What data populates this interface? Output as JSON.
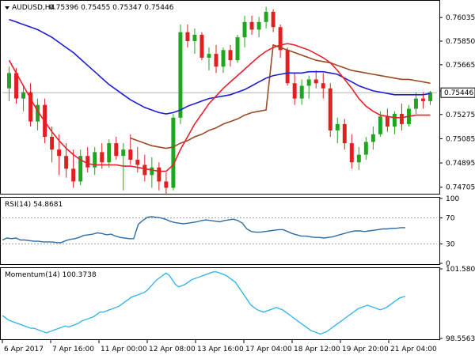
{
  "chart_data": [
    {
      "type": "candlestick",
      "header": {
        "symbol": "AUDUSD,H4",
        "ohlc": "0.75396 0.75455 0.75347 0.75446"
      },
      "current_price": 0.75446,
      "current_price_label": "0.75446",
      "ylim": [
        0.7466,
        0.7616
      ],
      "y_ticks": [
        "0.76035",
        "0.75850",
        "0.75665",
        "0.75460",
        "0.75275",
        "0.75085",
        "0.74895",
        "0.74705"
      ],
      "y_tick_values": [
        0.76035,
        0.7585,
        0.75665,
        0.7546,
        0.75275,
        0.75085,
        0.74895,
        0.74705
      ],
      "grid": false,
      "colors": {
        "bull": "#1fa61f",
        "bear": "#e02020",
        "sma_fast": "#e8202a",
        "sma_mid": "#1c1cd6",
        "sma_slow": "#9a4a24",
        "price_line": "#b0b0b0"
      },
      "candles": [
        [
          0.7548,
          0.7565,
          0.7538,
          0.756
        ],
        [
          0.756,
          0.7564,
          0.7536,
          0.754
        ],
        [
          0.754,
          0.755,
          0.753,
          0.7545
        ],
        [
          0.7545,
          0.7552,
          0.7518,
          0.7522
        ],
        [
          0.7522,
          0.754,
          0.7515,
          0.7535
        ],
        [
          0.7535,
          0.754,
          0.7505,
          0.751
        ],
        [
          0.751,
          0.7518,
          0.749,
          0.75
        ],
        [
          0.75,
          0.7512,
          0.748,
          0.7495
        ],
        [
          0.7495,
          0.7505,
          0.7478,
          0.7485
        ],
        [
          0.7485,
          0.75,
          0.747,
          0.7475
        ],
        [
          0.7475,
          0.75,
          0.7472,
          0.7495
        ],
        [
          0.7495,
          0.7502,
          0.7482,
          0.7486
        ],
        [
          0.7486,
          0.7502,
          0.748,
          0.7498
        ],
        [
          0.7498,
          0.7505,
          0.7485,
          0.749
        ],
        [
          0.749,
          0.7508,
          0.7486,
          0.7505
        ],
        [
          0.7505,
          0.751,
          0.7492,
          0.7495
        ],
        [
          0.7495,
          0.7505,
          0.7468,
          0.75
        ],
        [
          0.75,
          0.7512,
          0.7488,
          0.7492
        ],
        [
          0.7492,
          0.7502,
          0.7482,
          0.7488
        ],
        [
          0.7488,
          0.7496,
          0.7475,
          0.748
        ],
        [
          0.748,
          0.7494,
          0.747,
          0.7486
        ],
        [
          0.7486,
          0.749,
          0.7468,
          0.7475
        ],
        [
          0.7475,
          0.7482,
          0.7465,
          0.747
        ],
        [
          0.747,
          0.7528,
          0.7468,
          0.7525
        ],
        [
          0.7525,
          0.7598,
          0.752,
          0.7592
        ],
        [
          0.7592,
          0.7598,
          0.758,
          0.7585
        ],
        [
          0.7585,
          0.7595,
          0.7575,
          0.759
        ],
        [
          0.759,
          0.7592,
          0.757,
          0.7572
        ],
        [
          0.7572,
          0.758,
          0.7562,
          0.7575
        ],
        [
          0.7575,
          0.7582,
          0.756,
          0.7565
        ],
        [
          0.7565,
          0.758,
          0.756,
          0.7578
        ],
        [
          0.7578,
          0.7582,
          0.7565,
          0.757
        ],
        [
          0.757,
          0.759,
          0.7568,
          0.7588
        ],
        [
          0.7588,
          0.7605,
          0.758,
          0.76
        ],
        [
          0.76,
          0.7605,
          0.759,
          0.7594
        ],
        [
          0.7594,
          0.7604,
          0.7588,
          0.76
        ],
        [
          0.76,
          0.7612,
          0.7595,
          0.7608
        ],
        [
          0.7608,
          0.761,
          0.7592,
          0.7596
        ],
        [
          0.7596,
          0.7598,
          0.7572,
          0.7578
        ],
        [
          0.7578,
          0.758,
          0.755,
          0.7552
        ],
        [
          0.7552,
          0.756,
          0.7535,
          0.754
        ],
        [
          0.754,
          0.7555,
          0.7535,
          0.755
        ],
        [
          0.755,
          0.7558,
          0.754,
          0.7555
        ],
        [
          0.7555,
          0.7562,
          0.7548,
          0.7552
        ],
        [
          0.7552,
          0.756,
          0.754,
          0.7548
        ],
        [
          0.7548,
          0.7552,
          0.751,
          0.7515
        ],
        [
          0.7515,
          0.7525,
          0.7505,
          0.752
        ],
        [
          0.752,
          0.7524,
          0.75,
          0.7505
        ],
        [
          0.7505,
          0.7512,
          0.7485,
          0.749
        ],
        [
          0.749,
          0.7502,
          0.7484,
          0.7496
        ],
        [
          0.7496,
          0.751,
          0.7492,
          0.7506
        ],
        [
          0.7506,
          0.7518,
          0.75,
          0.7512
        ],
        [
          0.7512,
          0.753,
          0.751,
          0.7526
        ],
        [
          0.7526,
          0.7532,
          0.7514,
          0.7518
        ],
        [
          0.7518,
          0.753,
          0.7512,
          0.7528
        ],
        [
          0.7528,
          0.7536,
          0.7515,
          0.752
        ],
        [
          0.752,
          0.7535,
          0.7518,
          0.7532
        ],
        [
          0.7532,
          0.7545,
          0.7528,
          0.754
        ],
        [
          0.754,
          0.7545,
          0.7532,
          0.7538
        ],
        [
          0.7538,
          0.7546,
          0.7535,
          0.7545
        ]
      ],
      "sma_fast": [
        0.757,
        0.756,
        0.755,
        0.754,
        0.753,
        0.7522,
        0.7514,
        0.7507,
        0.7501,
        0.7496,
        0.7492,
        0.7489,
        0.7488,
        0.7488,
        0.7488,
        0.7488,
        0.7487,
        0.7487,
        0.7486,
        0.7485,
        0.7484,
        0.7483,
        0.7483,
        0.7488,
        0.75,
        0.751,
        0.752,
        0.7528,
        0.7536,
        0.7542,
        0.7548,
        0.7553,
        0.7558,
        0.7563,
        0.7568,
        0.7573,
        0.7577,
        0.758,
        0.7582,
        0.7583,
        0.7582,
        0.758,
        0.7578,
        0.7575,
        0.7572,
        0.7568,
        0.7562,
        0.7555,
        0.7548,
        0.754,
        0.7534,
        0.753,
        0.7527,
        0.7526,
        0.7525,
        0.7525,
        0.7526,
        0.7527,
        0.7527,
        0.7527
      ],
      "sma_mid": [
        0.7602,
        0.76,
        0.7598,
        0.7596,
        0.7594,
        0.7591,
        0.7588,
        0.7584,
        0.758,
        0.7576,
        0.7571,
        0.7566,
        0.7561,
        0.7556,
        0.7551,
        0.7547,
        0.7543,
        0.7539,
        0.7536,
        0.7533,
        0.7531,
        0.7529,
        0.7528,
        0.7529,
        0.7531,
        0.7534,
        0.7536,
        0.7538,
        0.754,
        0.7541,
        0.7542,
        0.7543,
        0.7545,
        0.7547,
        0.755,
        0.7553,
        0.7556,
        0.7558,
        0.7559,
        0.756,
        0.756,
        0.756,
        0.7561,
        0.7561,
        0.7561,
        0.756,
        0.7559,
        0.7556,
        0.7553,
        0.755,
        0.7548,
        0.7546,
        0.7545,
        0.7544,
        0.7543,
        0.7543,
        0.7543,
        0.7543,
        0.7543,
        0.7544
      ],
      "sma_slow": [
        null,
        null,
        null,
        null,
        null,
        null,
        null,
        null,
        null,
        null,
        null,
        null,
        null,
        null,
        null,
        null,
        null,
        0.7509,
        0.7507,
        0.7505,
        0.7503,
        0.7502,
        0.7501,
        0.7502,
        0.7505,
        0.7507,
        0.751,
        0.7512,
        0.7515,
        0.7517,
        0.752,
        0.7522,
        0.7524,
        0.7527,
        0.7529,
        0.753,
        0.7531,
        0.7582,
        0.758,
        0.7578,
        0.7576,
        0.7574,
        0.7572,
        0.757,
        0.7569,
        0.7568,
        0.7566,
        0.7564,
        0.7562,
        0.7561,
        0.756,
        0.7559,
        0.7558,
        0.7557,
        0.7556,
        0.7555,
        0.7555,
        0.7554,
        0.7553,
        0.7552
      ]
    },
    {
      "type": "line",
      "title": "RSI(14) 54.8681",
      "ylim": [
        0,
        100
      ],
      "y_ticks": [
        "100",
        "70",
        "30",
        "0"
      ],
      "y_tick_values": [
        100,
        70,
        30,
        0
      ],
      "levels": [
        70,
        30
      ],
      "color": "#2e6da4",
      "values": [
        36,
        39,
        38,
        39,
        36,
        36,
        35,
        34,
        34,
        33,
        33,
        33,
        32,
        32,
        35,
        37,
        38,
        40,
        43,
        44,
        45,
        47,
        46,
        44,
        45,
        42,
        40,
        39,
        38,
        38,
        60,
        66,
        71,
        72,
        71,
        70,
        68,
        65,
        63,
        62,
        61,
        62,
        63,
        64,
        66,
        67,
        66,
        65,
        64,
        66,
        67,
        68,
        66,
        62,
        53,
        49,
        48,
        48,
        49,
        50,
        51,
        52,
        52,
        49,
        46,
        44,
        42,
        42,
        41,
        40,
        40,
        39,
        40,
        41,
        43,
        45,
        47,
        49,
        50,
        50,
        49,
        50,
        51,
        52,
        53,
        53,
        54,
        54,
        55,
        55
      ]
    },
    {
      "type": "line",
      "title": "Momentum(14) 100.3738",
      "ylim": [
        98.5563,
        101.5803
      ],
      "y_ticks": [
        "101.5803",
        "98.5563"
      ],
      "y_tick_values": [
        101.5803,
        98.5563
      ],
      "color": "#38b6e8",
      "values": [
        99.55,
        99.45,
        99.35,
        99.3,
        99.25,
        99.2,
        99.15,
        99.1,
        99.05,
        99.0,
        99.0,
        98.95,
        98.9,
        98.85,
        98.8,
        98.85,
        98.9,
        98.95,
        99.0,
        99.05,
        99.1,
        99.05,
        99.1,
        99.15,
        99.2,
        99.3,
        99.35,
        99.4,
        99.45,
        99.5,
        99.6,
        99.7,
        99.7,
        99.75,
        99.8,
        99.85,
        99.9,
        99.95,
        100.05,
        100.15,
        100.25,
        100.35,
        100.4,
        100.45,
        100.5,
        100.55,
        100.65,
        100.8,
        100.95,
        101.1,
        101.2,
        101.3,
        101.4,
        101.3,
        101.1,
        100.9,
        100.8,
        100.85,
        100.9,
        101.0,
        101.1,
        101.15,
        101.2,
        101.25,
        101.3,
        101.35,
        101.4,
        101.45,
        101.45,
        101.4,
        101.35,
        101.3,
        101.2,
        101.1,
        101.0,
        100.8,
        100.6,
        100.4,
        100.2,
        100.0,
        99.9,
        99.8,
        99.75,
        99.7,
        99.75,
        99.8,
        99.85,
        99.9,
        99.85,
        99.8,
        99.7,
        99.6,
        99.5,
        99.4,
        99.3,
        99.2,
        99.1,
        99.0,
        98.9,
        98.85,
        98.8,
        98.75,
        98.8,
        98.85,
        98.95,
        99.05,
        99.15,
        99.25,
        99.35,
        99.45,
        99.55,
        99.65,
        99.75,
        99.85,
        99.9,
        99.95,
        100.0,
        99.95,
        99.9,
        99.85,
        99.8,
        99.85,
        99.9,
        100.0,
        100.1,
        100.2,
        100.3,
        100.35,
        100.38
      ]
    }
  ],
  "x_axis_labels": [
    "6 Apr 2017",
    "7 Apr 16:00",
    "11 Apr 00:00",
    "12 Apr 08:00",
    "13 Apr 16:00",
    "17 Apr 04:00",
    "18 Apr 12:00",
    "19 Apr 20:00",
    "21 Apr 04:00"
  ]
}
